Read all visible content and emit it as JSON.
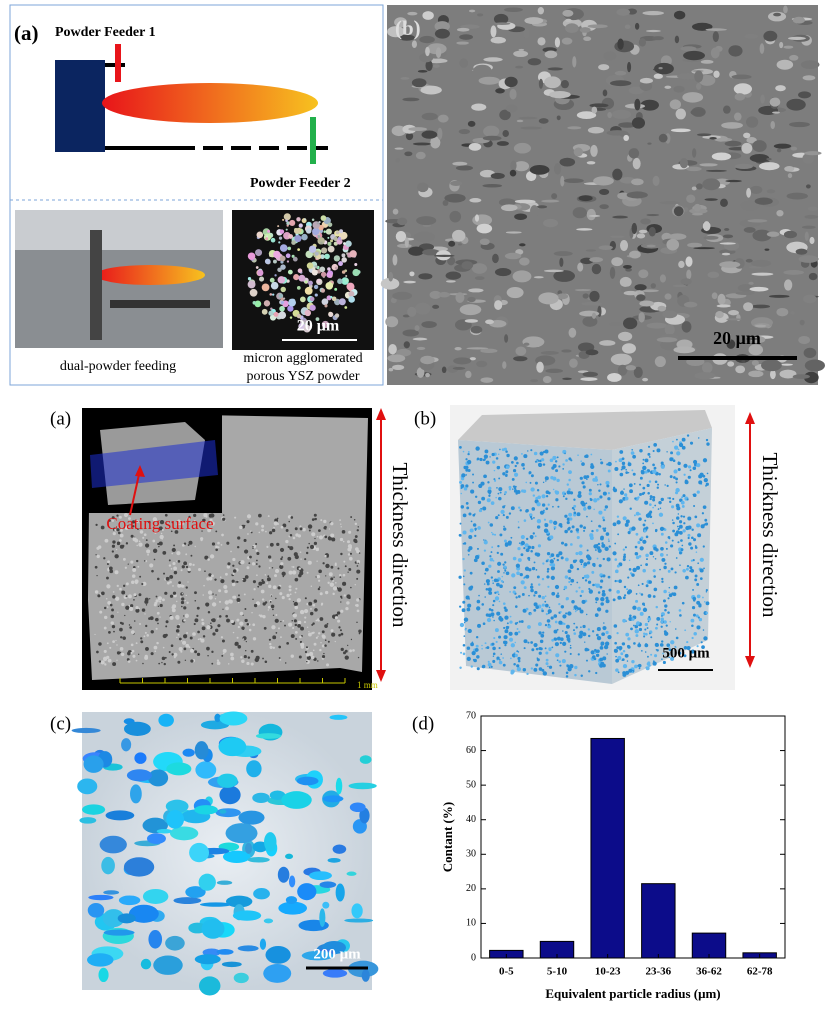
{
  "figure": {
    "top": {
      "a_label": "(a)",
      "feeder1": "Powder Feeder 1",
      "feeder2": "Powder Feeder 2",
      "inset_scale": "20 μm",
      "caption_left": "dual-powder feeding",
      "caption_right": [
        "micron agglomerated",
        "porous YSZ powder"
      ],
      "b_label": "(b)",
      "b_scale": "20 μm"
    },
    "middle": {
      "a_label": "(a)",
      "coating": "Coating surface",
      "ruler": "1 mm",
      "a_direction": "Thickness direction",
      "b_label": "(b)",
      "b_direction": "Thickness direction",
      "b_scale": "500 μm"
    },
    "bottom": {
      "c_label": "(c)",
      "c_scale": "200 μm",
      "d_label": "(d)"
    }
  },
  "chart_data": {
    "type": "bar",
    "xlabel": "Equivalent particle radius (μm)",
    "ylabel": "Contant (%)",
    "categories": [
      "0-5",
      "5-10",
      "10-23",
      "23-36",
      "36-62",
      "62-78"
    ],
    "values": [
      2.2,
      4.8,
      63.5,
      21.5,
      7.2,
      1.5
    ],
    "color": "#0c0c8a",
    "ylim": [
      0,
      70
    ],
    "yticks": [
      0,
      10,
      20,
      30,
      40,
      50,
      60,
      70
    ]
  }
}
